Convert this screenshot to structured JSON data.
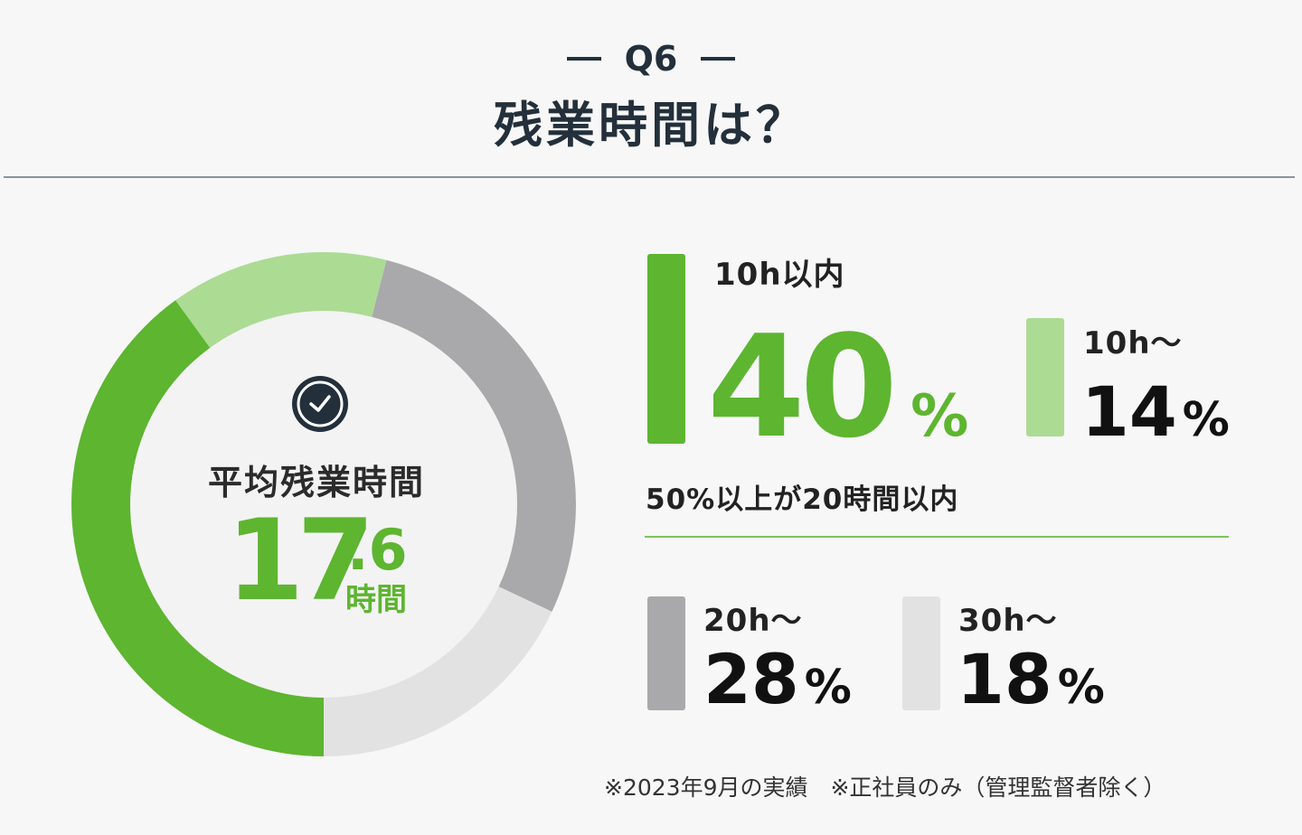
{
  "header": {
    "question": "Q6",
    "title": "残業時間は？"
  },
  "donut": {
    "center_label": "平均残業時間",
    "average_int": "17",
    "average_dec": ".6",
    "average_unit": "時間"
  },
  "legend": [
    {
      "label": "10h以内",
      "value": "40",
      "unit": "%"
    },
    {
      "label": "10h〜",
      "value": "14",
      "unit": "%"
    },
    {
      "label": "20h〜",
      "value": "28",
      "unit": "%"
    },
    {
      "label": "30h〜",
      "value": "18",
      "unit": "%"
    }
  ],
  "note": "50%以上が20時間以内",
  "footnote": "※2023年9月の実績　※正社員のみ（管理監督者除く）",
  "colors": {
    "green": "#5db530",
    "light_green": "#acdb94",
    "gray": "#a9a9ab",
    "light_gray": "#e2e2e2",
    "navy": "#23303b"
  },
  "chart_data": {
    "type": "pie",
    "categories": [
      "10h以内",
      "10h〜",
      "20h〜",
      "30h〜"
    ],
    "values": [
      40,
      14,
      28,
      18
    ],
    "unit": "%",
    "donut": true
  }
}
